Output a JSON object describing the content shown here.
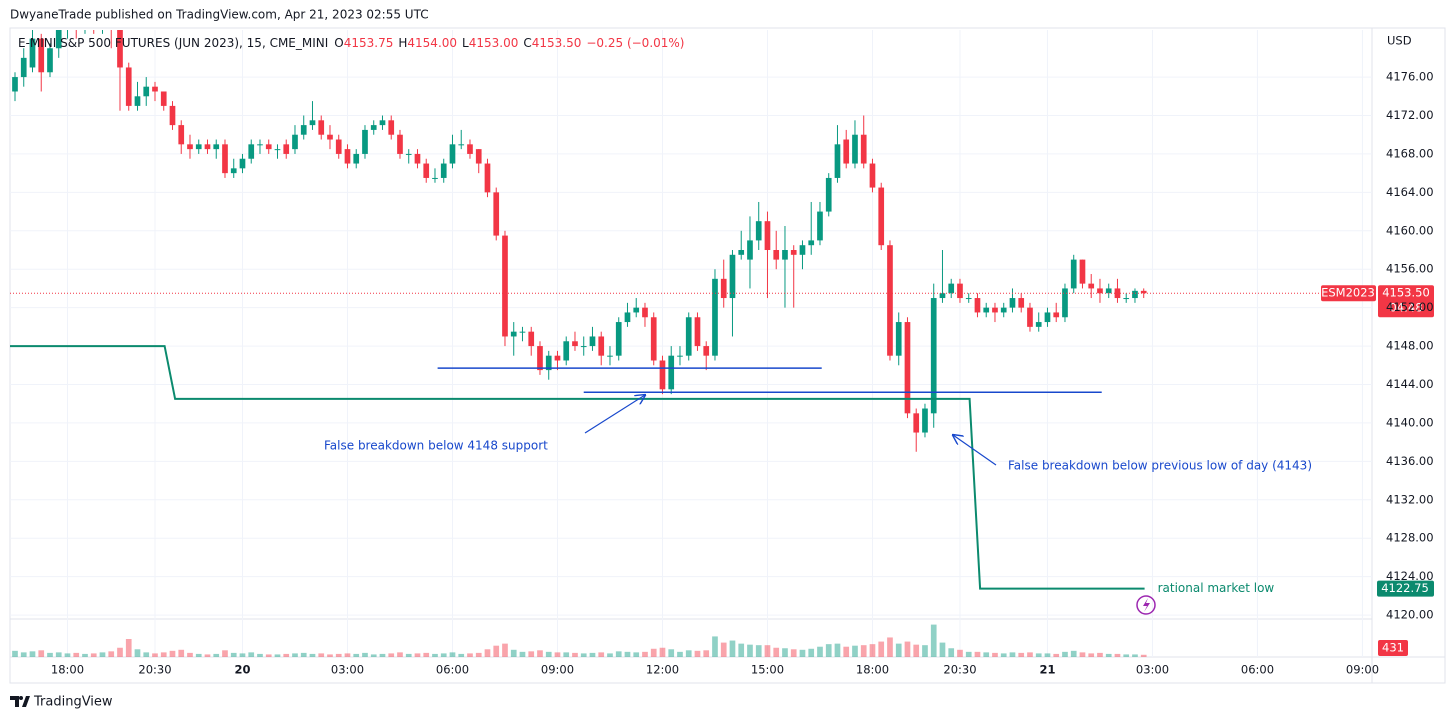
{
  "header": {
    "published": "DwyaneTrade published on TradingView.com, Apr 21, 2023 02:55 UTC"
  },
  "footer": {
    "brand": "TradingView"
  },
  "chart_data": {
    "type": "candlestick",
    "title": "E-MINI S&P 500 FUTURES (JUN 2023), 15, CME_MINI",
    "legend_values": [
      {
        "key": "O",
        "value": "4153.75"
      },
      {
        "key": "H",
        "value": "4154.00"
      },
      {
        "key": "L",
        "value": "4153.00"
      },
      {
        "key": "C",
        "value": "4153.50"
      }
    ],
    "change": "−0.25 (−0.01%)",
    "currency": "USD",
    "up_color": "#089981",
    "down_color": "#f23645",
    "open": [
      4174.5,
      4176,
      4177,
      4180,
      4176.5,
      4179,
      4181,
      4182,
      4181,
      4182,
      4181.5,
      4182,
      4181,
      4177,
      4173,
      4174,
      4175,
      4174.5,
      4173,
      4171,
      4169,
      4168.5,
      4169,
      4168.5,
      4169,
      4166,
      4166.5,
      4167.5,
      4169,
      4169,
      4168.5,
      4169,
      4168.5,
      4170,
      4171,
      4171.5,
      4170,
      4169.5,
      4168.5,
      4167,
      4168,
      4170.5,
      4171,
      4171.5,
      4170,
      4168,
      4168,
      4167,
      4165.5,
      4165.5,
      4167,
      4169,
      4169,
      4168.5,
      4167,
      4164,
      4159.5,
      4149,
      4149.5,
      4149.5,
      4148,
      4145.5,
      4147,
      4146.5,
      4148.5,
      4148,
      4148,
      4149,
      4147,
      4147,
      4150.5,
      4151.5,
      4152,
      4151,
      4146.5,
      4143.5,
      4147,
      4147,
      4151,
      4148,
      4147,
      4155,
      4153,
      4157.5,
      4157,
      4159,
      4161,
      4158,
      4157,
      4158,
      4157.5,
      4158.5,
      4159,
      4162,
      4165.5,
      4169.5,
      4167,
      4170,
      4167,
      4164.5,
      4158.5,
      4147,
      4150.5,
      4141,
      4139,
      4141,
      4153,
      4153.5,
      4154.5,
      4153,
      4153,
      4151.5,
      4152,
      4151.5,
      4152,
      4153,
      4152,
      4150,
      4150.5,
      4151.5,
      4151,
      4154,
      4157,
      4154.5,
      4154,
      4153.5,
      4154,
      4153,
      4153,
      4153.75
    ],
    "high": [
      4176.5,
      4179,
      4181,
      4180.5,
      4179.5,
      4182,
      4183,
      4183,
      4183,
      4183,
      4183,
      4182.5,
      4181.5,
      4177.5,
      4175.5,
      4176,
      4175.5,
      4174.5,
      4173.5,
      4171.5,
      4170,
      4169.5,
      4169.5,
      4169.5,
      4169.5,
      4167.5,
      4168,
      4169.5,
      4169.5,
      4169.5,
      4169,
      4169.5,
      4171,
      4172,
      4173.5,
      4172,
      4171,
      4170,
      4169,
      4168.5,
      4171,
      4171.5,
      4172,
      4172,
      4170.5,
      4168.5,
      4168.5,
      4167.5,
      4166.5,
      4167.5,
      4170,
      4170.5,
      4169.5,
      4168.5,
      4167.5,
      4164.5,
      4160,
      4150.5,
      4150,
      4150,
      4148.5,
      4147.5,
      4147.5,
      4149,
      4149.5,
      4149,
      4150,
      4149.5,
      4148,
      4151,
      4152.5,
      4153,
      4152.5,
      4151.5,
      4147,
      4148,
      4148,
      4151.5,
      4151.5,
      4148.5,
      4156,
      4157,
      4158,
      4160,
      4161.5,
      4163,
      4162,
      4160,
      4160.5,
      4158.5,
      4159,
      4163,
      4163,
      4166,
      4171,
      4170.5,
      4171.5,
      4172,
      4167.5,
      4165,
      4159,
      4151.5,
      4151,
      4141.5,
      4142,
      4154.5,
      4158,
      4155,
      4155,
      4153.5,
      4153.5,
      4152.5,
      4152.5,
      4152.5,
      4154,
      4153.5,
      4152.5,
      4151.5,
      4152,
      4152.5,
      4154.5,
      4157.5,
      4157,
      4155.5,
      4155,
      4154.5,
      4155,
      4153.5,
      4154,
      4154
    ],
    "low": [
      4173.5,
      4175,
      4176.5,
      4174.5,
      4176,
      4178,
      4180,
      4180,
      4180.5,
      4180.5,
      4180.5,
      4179,
      4172.5,
      4172.5,
      4172.5,
      4173,
      4173.5,
      4172.5,
      4170.5,
      4168,
      4167.5,
      4168,
      4168,
      4167.5,
      4165.5,
      4165.5,
      4166,
      4167,
      4168,
      4168,
      4167.5,
      4167.5,
      4168,
      4169.5,
      4170.5,
      4169.5,
      4168.5,
      4167.5,
      4166.5,
      4166.5,
      4167.5,
      4170,
      4170.5,
      4169.5,
      4167.5,
      4167,
      4166.5,
      4165,
      4165,
      4165,
      4166.5,
      4168.5,
      4167.5,
      4166,
      4163.5,
      4159,
      4148,
      4147,
      4148.5,
      4147,
      4145,
      4144.5,
      4145.5,
      4146,
      4147.5,
      4147,
      4147.5,
      4146,
      4146,
      4146.5,
      4150,
      4151,
      4150,
      4146,
      4143,
      4143,
      4146,
      4146.5,
      4147.5,
      4145.5,
      4146.5,
      4152,
      4149,
      4157,
      4154,
      4158,
      4153,
      4156,
      4152,
      4152,
      4156,
      4157.5,
      4158.5,
      4161.5,
      4165,
      4166.5,
      4166.5,
      4166.5,
      4164,
      4158,
      4146.5,
      4146,
      4140.5,
      4137,
      4138.5,
      4139.5,
      4152.5,
      4153,
      4152.5,
      4152.5,
      4151,
      4151,
      4150.5,
      4151,
      4151.5,
      4151.5,
      4149.5,
      4149.5,
      4150,
      4150.5,
      4150.5,
      4153.5,
      4154,
      4153,
      4152.5,
      4153,
      4152.5,
      4152.5,
      4152.5,
      4153
    ],
    "close": [
      4176,
      4178,
      4180,
      4176.5,
      4179,
      4181,
      4182,
      4181,
      4182,
      4181.5,
      4182,
      4181,
      4177,
      4173,
      4174,
      4175,
      4174.5,
      4173,
      4171,
      4169,
      4168.5,
      4169,
      4168.5,
      4169,
      4166,
      4166.5,
      4167.5,
      4169,
      4169,
      4168.5,
      4168.5,
      4168,
      4170,
      4171,
      4171.5,
      4170,
      4169.5,
      4168,
      4167,
      4168,
      4170.5,
      4171,
      4171.5,
      4170,
      4168,
      4168,
      4167,
      4165.5,
      4165.5,
      4167,
      4169,
      4169,
      4168,
      4167,
      4164,
      4159.5,
      4149,
      4149.5,
      4149.5,
      4148,
      4145.5,
      4147,
      4146.5,
      4148.5,
      4148,
      4148,
      4149,
      4147,
      4147,
      4150.5,
      4151.5,
      4152,
      4151,
      4146.5,
      4143.5,
      4147,
      4147,
      4151,
      4148,
      4147,
      4155,
      4153,
      4157.5,
      4158,
      4159,
      4161,
      4158,
      4157,
      4158,
      4157.5,
      4158.5,
      4159,
      4162,
      4165.5,
      4169,
      4167,
      4170,
      4167,
      4164.5,
      4158.5,
      4147,
      4150.5,
      4141,
      4139,
      4141.5,
      4153,
      4153.5,
      4154.5,
      4153,
      4153,
      4151.5,
      4152,
      4151.5,
      4152,
      4153,
      4152,
      4150,
      4150.5,
      4151.5,
      4151,
      4154,
      4157,
      4154.5,
      4154,
      4153.5,
      4154,
      4153,
      4153,
      4153.75,
      4153.5
    ],
    "volume": [
      1200,
      900,
      1100,
      1300,
      800,
      900,
      700,
      800,
      600,
      700,
      900,
      1100,
      1800,
      3500,
      1500,
      900,
      700,
      900,
      1200,
      1400,
      800,
      600,
      500,
      600,
      1300,
      800,
      700,
      900,
      600,
      500,
      500,
      600,
      700,
      800,
      600,
      700,
      500,
      600,
      700,
      600,
      800,
      500,
      600,
      700,
      900,
      600,
      700,
      800,
      600,
      700,
      900,
      600,
      700,
      800,
      1500,
      2200,
      2600,
      1400,
      1000,
      1100,
      1300,
      1000,
      900,
      900,
      800,
      700,
      800,
      900,
      700,
      1100,
      1000,
      900,
      1000,
      1600,
      1800,
      1500,
      1000,
      1300,
      1200,
      1300,
      4000,
      2800,
      3200,
      2600,
      2400,
      2300,
      2300,
      1800,
      1700,
      1500,
      1400,
      1600,
      2000,
      2500,
      2600,
      2000,
      2200,
      2300,
      2500,
      3000,
      3800,
      2600,
      3000,
      2400,
      2300,
      6300,
      2800,
      1700,
      1400,
      1000,
      1000,
      900,
      800,
      700,
      900,
      800,
      900,
      700,
      700,
      600,
      1000,
      1200,
      900,
      700,
      800,
      600,
      600,
      500,
      500,
      431
    ],
    "volume_ylim": [
      0,
      7000
    ],
    "xlim": [
      -0.57,
      155.09
    ],
    "ylim": [
      4119.8,
      4180.9
    ],
    "xticks": [
      {
        "value": 6,
        "label": "18:00"
      },
      {
        "value": 16,
        "label": "20:30"
      },
      {
        "value": 26,
        "label": "20",
        "bold": true
      },
      {
        "value": 38,
        "label": "03:00"
      },
      {
        "value": 50,
        "label": "06:00"
      },
      {
        "value": 62,
        "label": "09:00"
      },
      {
        "value": 74,
        "label": "12:00"
      },
      {
        "value": 86,
        "label": "15:00"
      },
      {
        "value": 98,
        "label": "18:00"
      },
      {
        "value": 108,
        "label": "20:30"
      },
      {
        "value": 118,
        "label": "21",
        "bold": true
      },
      {
        "value": 130,
        "label": "03:00"
      },
      {
        "value": 142,
        "label": "06:00"
      },
      {
        "value": 154,
        "label": "09:00"
      }
    ],
    "yticks": [
      {
        "value": 4120,
        "label": "4120.00"
      },
      {
        "value": 4124,
        "label": "4124.00"
      },
      {
        "value": 4128,
        "label": "4128.00"
      },
      {
        "value": 4132,
        "label": "4132.00"
      },
      {
        "value": 4136,
        "label": "4136.00"
      },
      {
        "value": 4140,
        "label": "4140.00"
      },
      {
        "value": 4144,
        "label": "4144.00"
      },
      {
        "value": 4148,
        "label": "4148.00"
      },
      {
        "value": 4152,
        "label": "4152.00"
      },
      {
        "value": 4156,
        "label": "4156.00"
      },
      {
        "value": 4160,
        "label": "4160.00"
      },
      {
        "value": 4164,
        "label": "4164.00"
      },
      {
        "value": 4168,
        "label": "4168.00"
      },
      {
        "value": 4172,
        "label": "4172.00"
      },
      {
        "value": 4176,
        "label": "4176.00"
      }
    ],
    "grid": true,
    "last_price": {
      "symbol": "ESM2023",
      "label": "4153.50",
      "countdown": "04:48"
    },
    "levels": [
      {
        "x": [
          48.3,
          92.2
        ],
        "value": 4145.7,
        "color": "#1848cc"
      },
      {
        "x": [
          65,
          124.2
        ],
        "value": 4143.2,
        "color": "#1848cc"
      }
    ],
    "step_line": {
      "color": "#0b8a6e",
      "x": [
        -0.57,
        17.1,
        18.3,
        109.1,
        110.3,
        129.1
      ],
      "values": [
        4148,
        4148,
        4142.5,
        4142.5,
        4122.75,
        4122.75
      ],
      "name": "rational market low",
      "last_label": "4122.75"
    },
    "annotations": [
      {
        "text": "False breakdown below 4148 support",
        "color": "#1848cc"
      },
      {
        "text": "False breakdown below previous low of day (4143)",
        "color": "#1848cc"
      }
    ]
  }
}
